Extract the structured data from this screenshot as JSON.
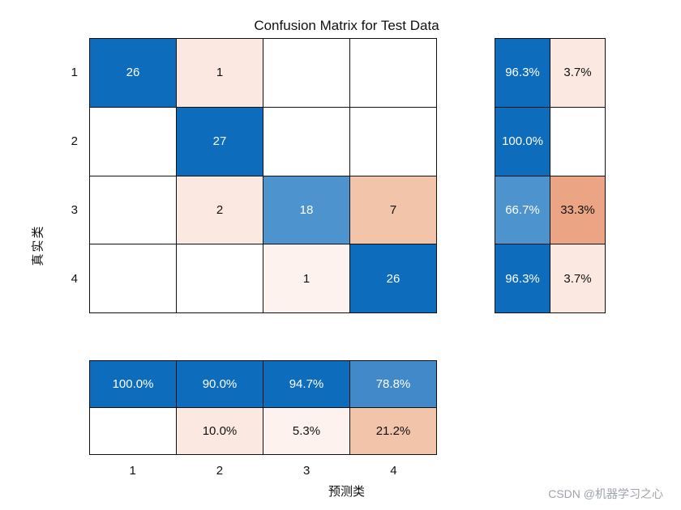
{
  "title": "Confusion Matrix for Test Data",
  "axes": {
    "x_label": "预测类",
    "y_label": "真实类"
  },
  "watermark": "CSDN @机器学习之心",
  "colors": {
    "deep_blue": "#0e6cbd",
    "mid_blue": "#4d94ce",
    "light_blue": "#4189c8",
    "pink_light": "#fbe9e1",
    "pink_faint": "#fdf2ed",
    "orange_mid": "#f2c4a9",
    "orange_strong": "#eba584",
    "white": "#ffffff",
    "grid_line": "#111111",
    "text_dark": "#111111",
    "text_light": "#ffffff",
    "watermark_gray": "#9ea3ab"
  },
  "chart_data": {
    "type": "heatmap",
    "subtype": "confusion-matrix",
    "classes": [
      "1",
      "2",
      "3",
      "4"
    ],
    "matrix": [
      [
        26,
        1,
        null,
        null
      ],
      [
        null,
        27,
        null,
        null
      ],
      [
        null,
        2,
        18,
        7
      ],
      [
        null,
        null,
        1,
        26
      ]
    ],
    "cell_colors": [
      [
        "deep_blue",
        "pink_light",
        "white",
        "white"
      ],
      [
        "white",
        "deep_blue",
        "white",
        "white"
      ],
      [
        "white",
        "pink_light",
        "mid_blue",
        "orange_mid"
      ],
      [
        "white",
        "white",
        "pink_faint",
        "deep_blue"
      ]
    ],
    "row_summary": [
      {
        "correct": "96.3%",
        "incorrect": "3.7%"
      },
      {
        "correct": "100.0%",
        "incorrect": null
      },
      {
        "correct": "66.7%",
        "incorrect": "33.3%"
      },
      {
        "correct": "96.3%",
        "incorrect": "3.7%"
      }
    ],
    "row_summary_colors": [
      [
        "deep_blue",
        "pink_light"
      ],
      [
        "deep_blue",
        "white"
      ],
      [
        "mid_blue",
        "orange_strong"
      ],
      [
        "deep_blue",
        "pink_light"
      ]
    ],
    "column_summary": [
      {
        "correct": "100.0%",
        "incorrect": null
      },
      {
        "correct": "90.0%",
        "incorrect": "10.0%"
      },
      {
        "correct": "94.7%",
        "incorrect": "5.3%"
      },
      {
        "correct": "78.8%",
        "incorrect": "21.2%"
      }
    ],
    "column_summary_colors": [
      [
        "deep_blue",
        "white"
      ],
      [
        "deep_blue",
        "pink_light"
      ],
      [
        "deep_blue",
        "pink_faint"
      ],
      [
        "light_blue",
        "orange_mid"
      ]
    ]
  }
}
